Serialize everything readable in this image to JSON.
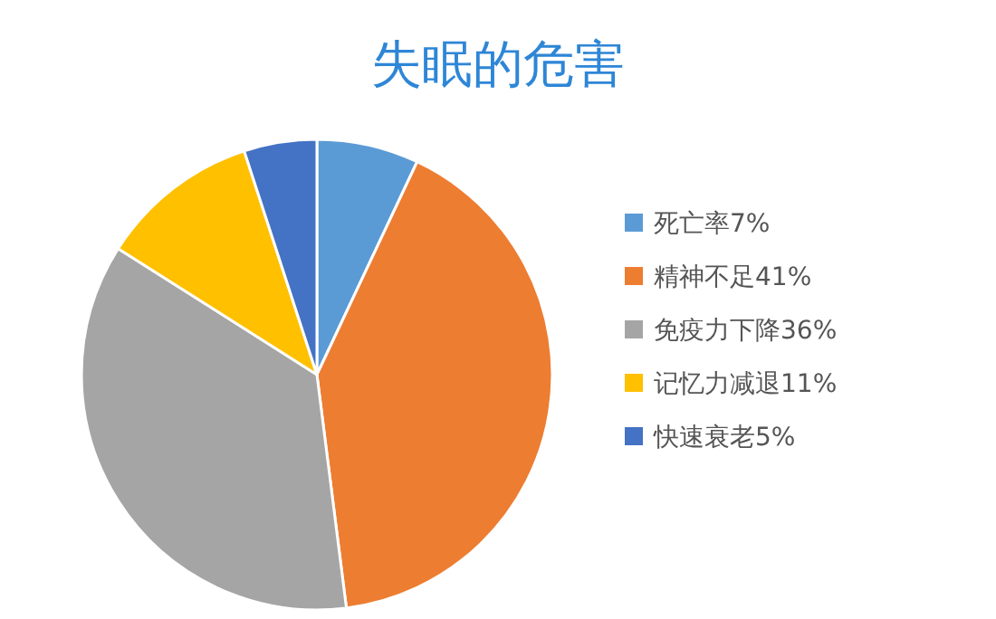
{
  "chart_data": {
    "type": "pie",
    "title": "失眠的危害",
    "categories": [
      "死亡率7%",
      "精神不足41%",
      "免疫力下降36%",
      "记忆力减退11%",
      "快速衰老5%"
    ],
    "values": [
      7,
      41,
      36,
      11,
      5
    ],
    "colors": [
      "#5b9bd5",
      "#ed7d31",
      "#a5a5a5",
      "#ffc000",
      "#4472c4"
    ],
    "legend": "right"
  }
}
